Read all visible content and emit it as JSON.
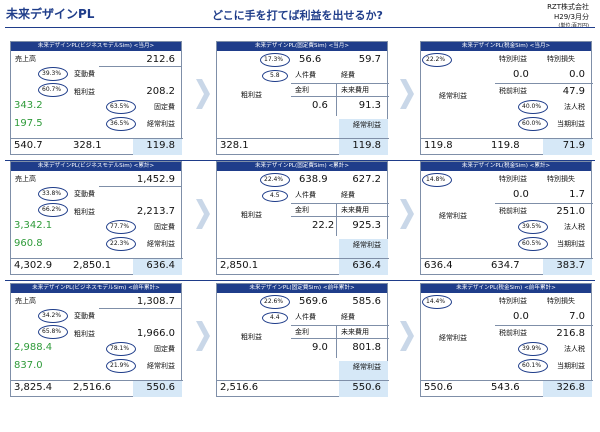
{
  "header": {
    "left_title": "未来デザインPL",
    "main_title": "どこに手を打てば利益を出せるか?",
    "company": "RZT株式会社",
    "period": "H29/3月分",
    "unit": "(単位:百万円)"
  },
  "rows": [
    {
      "business": {
        "title": "未来デザインPL(ビジネスモデルSim) <当月>",
        "sales_label": "売上高",
        "sales": "212.6",
        "var_label": "変動費",
        "var_pct": "39.3%",
        "gross_label": "粗利益",
        "gross_pct": "60.7%",
        "gross": "208.2",
        "fixed_label": "固定費",
        "fixed_pct": "63.5%",
        "fixed_green": "343.2",
        "op_label": "経常利益",
        "op_pct": "36.5%",
        "op_green": "197.5",
        "bot1": "540.7",
        "bot2": "328.1",
        "bot3": "119.8"
      },
      "fixed": {
        "title": "未来デザインPL(固定費Sim) <当月>",
        "pct1": "17.3%",
        "v1": "56.6",
        "v2": "59.7",
        "pct2": "5.8",
        "personnel_label": "人件費",
        "expense_label": "経費",
        "gross_label": "粗利益",
        "interest_label": "金利",
        "nonop_label": "未来費用",
        "interest": "0.6",
        "nonop": "91.3",
        "op_label": "経常利益",
        "gross": "328.1",
        "op": "119.8"
      },
      "tax": {
        "title": "未来デザインPL(税金Sim) <当月>",
        "pct1": "22.2%",
        "sp_gain_label": "特別利益",
        "sp_loss_label": "特別損失",
        "sp_gain": "0.0",
        "sp_loss": "0.0",
        "op_label": "経常利益",
        "pretax_label": "税前利益",
        "pretax": "47.9",
        "tax_pct": "40.0%",
        "tax_label": "法人税",
        "net_pct": "60.0%",
        "net_label": "当期利益",
        "bot1": "119.8",
        "bot2": "119.8",
        "bot3": "71.9"
      }
    },
    {
      "business": {
        "title": "未来デザインPL(ビジネスモデルSim) <累計>",
        "sales_label": "売上高",
        "sales": "1,452.9",
        "var_label": "変動費",
        "var_pct": "33.8%",
        "gross_label": "粗利益",
        "gross_pct": "66.2%",
        "gross": "2,213.7",
        "fixed_label": "固定費",
        "fixed_pct": "77.7%",
        "fixed_green": "3,342.1",
        "op_label": "経常利益",
        "op_pct": "22.3%",
        "op_green": "960.8",
        "bot1": "4,302.9",
        "bot2": "2,850.1",
        "bot3": "636.4"
      },
      "fixed": {
        "title": "未来デザインPL(固定費Sim) <累計>",
        "pct1": "22.4%",
        "v1": "638.9",
        "v2": "627.2",
        "pct2": "4.5",
        "personnel_label": "人件費",
        "expense_label": "経費",
        "gross_label": "粗利益",
        "interest_label": "金利",
        "nonop_label": "未来費用",
        "interest": "22.2",
        "nonop": "925.3",
        "op_label": "経常利益",
        "gross": "2,850.1",
        "op": "636.4"
      },
      "tax": {
        "title": "未来デザインPL(税金Sim) <累計>",
        "pct1": "14.8%",
        "sp_gain_label": "特別利益",
        "sp_loss_label": "特別損失",
        "sp_gain": "0.0",
        "sp_loss": "1.7",
        "op_label": "経常利益",
        "pretax_label": "税前利益",
        "pretax": "251.0",
        "tax_pct": "39.5%",
        "tax_label": "法人税",
        "net_pct": "60.5%",
        "net_label": "当期利益",
        "bot1": "636.4",
        "bot2": "634.7",
        "bot3": "383.7"
      }
    },
    {
      "business": {
        "title": "未来デザインPL(ビジネスモデルSim) <前年累計>",
        "sales_label": "売上高",
        "sales": "1,308.7",
        "var_label": "変動費",
        "var_pct": "34.2%",
        "gross_label": "粗利益",
        "gross_pct": "65.8%",
        "gross": "1,966.0",
        "fixed_label": "固定費",
        "fixed_pct": "78.1%",
        "fixed_green": "2,988.4",
        "op_label": "経常利益",
        "op_pct": "21.9%",
        "op_green": "837.0",
        "bot1": "3,825.4",
        "bot2": "2,516.6",
        "bot3": "550.6"
      },
      "fixed": {
        "title": "未来デザインPL(固定費Sim) <前年累計>",
        "pct1": "22.6%",
        "v1": "569.6",
        "v2": "585.6",
        "pct2": "4.4",
        "personnel_label": "人件費",
        "expense_label": "経費",
        "gross_label": "粗利益",
        "interest_label": "金利",
        "nonop_label": "未来費用",
        "interest": "9.0",
        "nonop": "801.8",
        "op_label": "経常利益",
        "gross": "2,516.6",
        "op": "550.6"
      },
      "tax": {
        "title": "未来デザインPL(税金Sim) <前年累計>",
        "pct1": "14.4%",
        "sp_gain_label": "特別利益",
        "sp_loss_label": "特別損失",
        "sp_gain": "0.0",
        "sp_loss": "7.0",
        "op_label": "経常利益",
        "pretax_label": "税前利益",
        "pretax": "216.8",
        "tax_pct": "39.9%",
        "tax_label": "法人税",
        "net_pct": "60.1%",
        "net_label": "当期利益",
        "bot1": "550.6",
        "bot2": "543.6",
        "bot3": "326.8"
      }
    }
  ]
}
